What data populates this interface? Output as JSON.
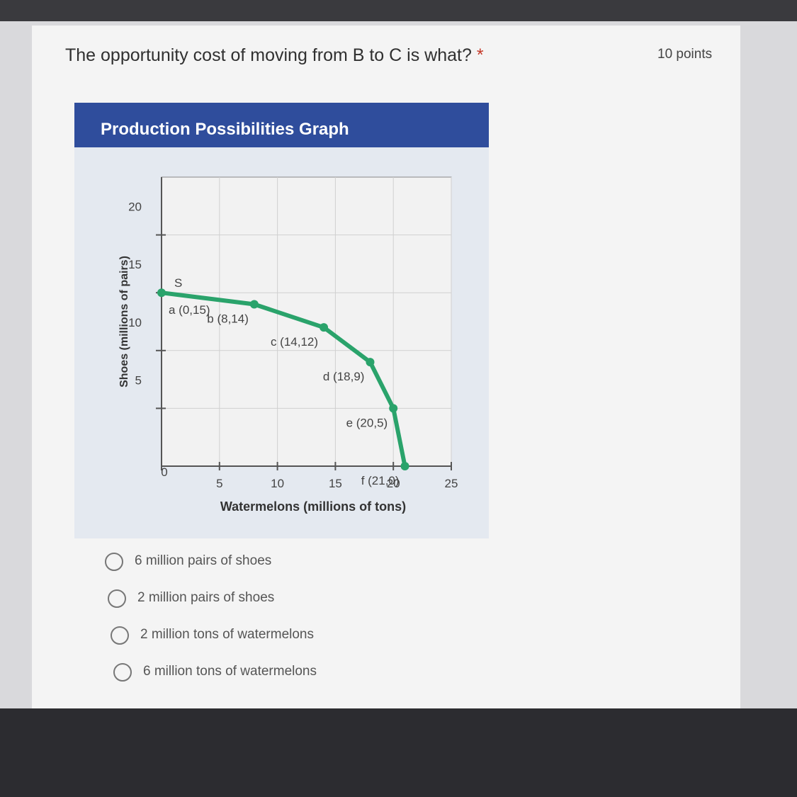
{
  "question": {
    "text": "The opportunity cost of moving from B to C is what?",
    "required_mark": "*",
    "points": "10 points"
  },
  "chart_data": {
    "type": "line",
    "title": "Production Possibilities Graph",
    "x_label": "Watermelons (millions of tons)",
    "y_label": "Shoes (millions of pairs)",
    "x": [
      0,
      8,
      14,
      18,
      20,
      21
    ],
    "series": [
      {
        "color": "#2aa36b",
        "values": [
          15,
          14,
          12,
          9,
          5,
          0
        ]
      }
    ],
    "point_labels": [
      "a (0,15)",
      "b (8,14)",
      "c (14,12)",
      "d (18,9)",
      "e (20,5)",
      "f (21,0)"
    ],
    "annotation": "S",
    "xlim": [
      0,
      25
    ],
    "ylim": [
      0,
      25
    ],
    "xticks": [
      0,
      5,
      10,
      15,
      20,
      25
    ],
    "yticks": [
      5,
      10,
      15,
      20
    ],
    "grid": true
  },
  "options": [
    "6 million pairs of shoes",
    "2 million pairs of shoes",
    "2 million tons of watermelons",
    "6 million tons of watermelons"
  ]
}
